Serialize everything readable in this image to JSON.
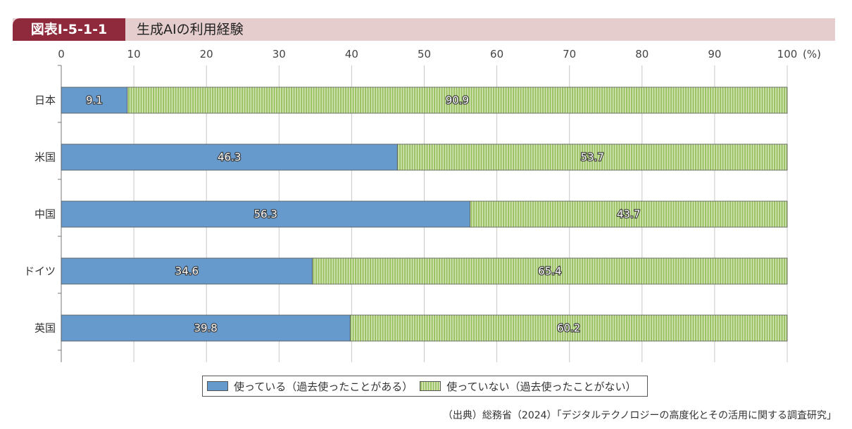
{
  "header": {
    "figure_number": "図表Ⅰ-5-1-1",
    "title": "生成AIの利用経験"
  },
  "chart_data": {
    "type": "bar",
    "orientation": "horizontal",
    "stacked": true,
    "categories": [
      "日本",
      "米国",
      "中国",
      "ドイツ",
      "英国"
    ],
    "series": [
      {
        "name": "使っている（過去使ったことがある）",
        "values": [
          9.1,
          46.3,
          56.3,
          34.6,
          39.8
        ],
        "color": "#6699cc"
      },
      {
        "name": "使っていない（過去使ったことがない）",
        "values": [
          90.9,
          53.7,
          43.7,
          65.4,
          60.2
        ],
        "color": "#9bc364"
      }
    ],
    "xlim": [
      0,
      100
    ],
    "x_ticks": [
      "0",
      "10",
      "20",
      "30",
      "40",
      "50",
      "60",
      "70",
      "80",
      "90",
      "100"
    ],
    "x_unit": "(%)",
    "grid": true,
    "legend_position": "bottom"
  },
  "source": "（出典）総務省（2024）「デジタルテクノロジーの高度化とその活用に関する調査研究」"
}
